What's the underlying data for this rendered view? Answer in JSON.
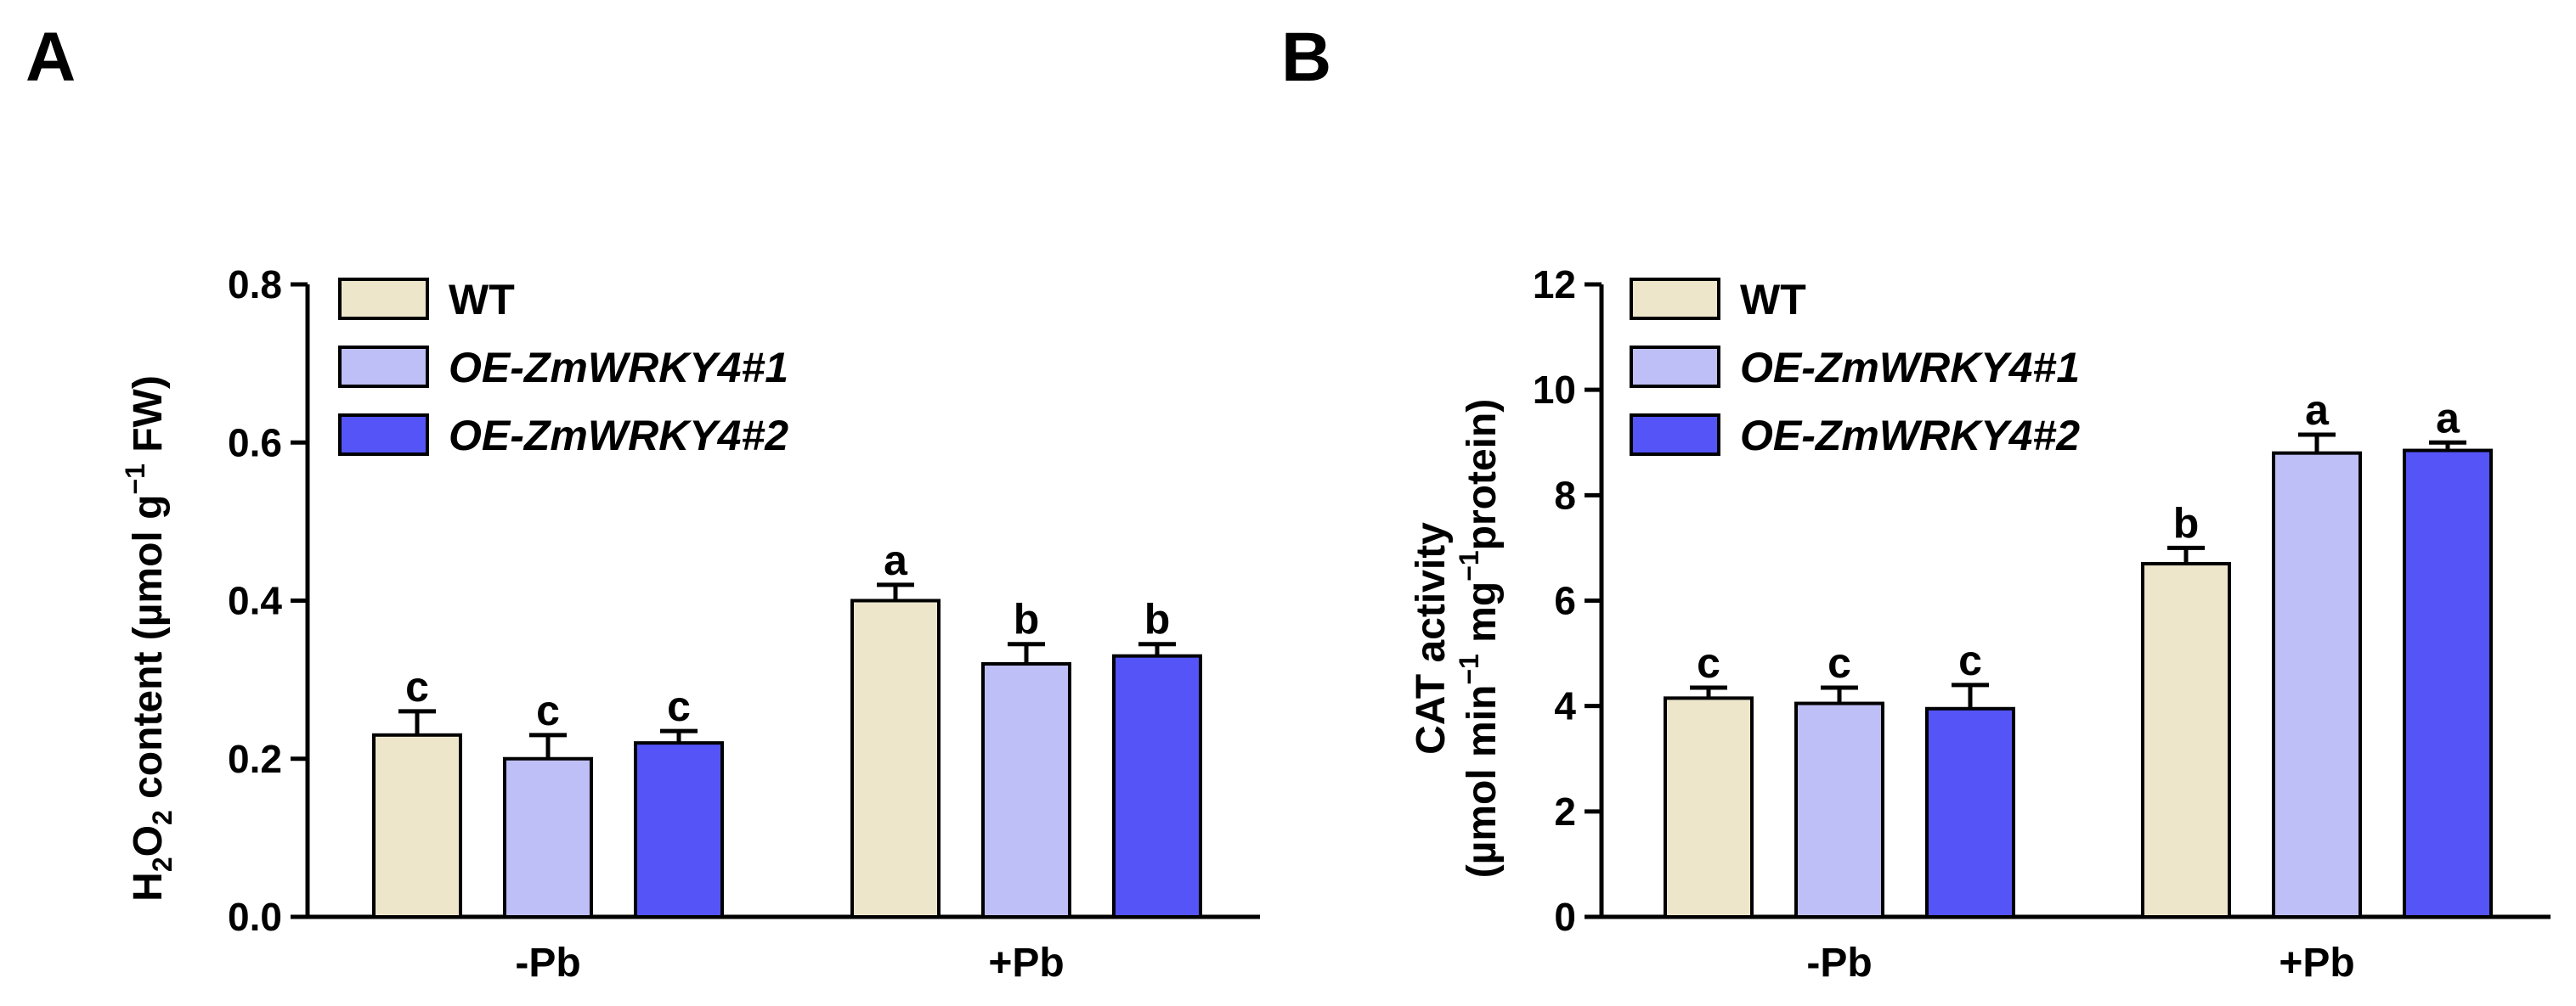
{
  "chart_data": [
    {
      "panel": "A",
      "type": "bar",
      "ylabel": {
        "text": "H",
        "sub": "2",
        "mid": "O",
        "sub2": "2",
        "rest": " content (µmol g",
        "sup": "−1",
        "end": " FW)"
      },
      "ylim": [
        0,
        0.8
      ],
      "yticks": [
        "0.0",
        "0.2",
        "0.4",
        "0.6",
        "0.8"
      ],
      "ytick_values": [
        0.0,
        0.2,
        0.4,
        0.6,
        0.8
      ],
      "categories": [
        "-Pb",
        "+Pb"
      ],
      "series": [
        {
          "name": "WT",
          "color": "#ede6cb",
          "values": [
            0.23,
            0.4
          ],
          "errors": [
            0.03,
            0.02
          ],
          "letters": [
            "c",
            "a"
          ]
        },
        {
          "name": "OE-ZmWRKY4#1",
          "color": "#bfbff7",
          "values": [
            0.2,
            0.32
          ],
          "errors": [
            0.03,
            0.025
          ],
          "letters": [
            "c",
            "b"
          ]
        },
        {
          "name": "OE-ZmWRKY4#2",
          "color": "#5454f7",
          "values": [
            0.22,
            0.33
          ],
          "errors": [
            0.015,
            0.015
          ],
          "letters": [
            "c",
            "b"
          ]
        }
      ],
      "legend": [
        "WT",
        "OE-ZmWRKY4#1",
        "OE-ZmWRKY4#2"
      ]
    },
    {
      "panel": "B",
      "type": "bar",
      "ylabel_line1": "CAT activity",
      "ylabel_line2": {
        "text": "(µmol min",
        "sup1": "−1",
        "mid": " mg",
        "sup2": "−1",
        "end": "protein)"
      },
      "ylim": [
        0,
        12
      ],
      "yticks": [
        "0",
        "2",
        "4",
        "6",
        "8",
        "10",
        "12"
      ],
      "ytick_values": [
        0,
        2,
        4,
        6,
        8,
        10,
        12
      ],
      "categories": [
        "-Pb",
        "+Pb"
      ],
      "series": [
        {
          "name": "WT",
          "color": "#ede6cb",
          "values": [
            4.15,
            6.7
          ],
          "errors": [
            0.2,
            0.3
          ],
          "letters": [
            "c",
            "b"
          ]
        },
        {
          "name": "OE-ZmWRKY4#1",
          "color": "#bfbff7",
          "values": [
            4.05,
            8.8
          ],
          "errors": [
            0.3,
            0.35
          ],
          "letters": [
            "c",
            "a"
          ]
        },
        {
          "name": "OE-ZmWRKY4#2",
          "color": "#5454f7",
          "values": [
            3.95,
            8.85
          ],
          "errors": [
            0.45,
            0.15
          ],
          "letters": [
            "c",
            "a"
          ]
        }
      ],
      "legend": [
        "WT",
        "OE-ZmWRKY4#1",
        "OE-ZmWRKY4#2"
      ]
    }
  ],
  "panel_letters": [
    "A",
    "B"
  ]
}
